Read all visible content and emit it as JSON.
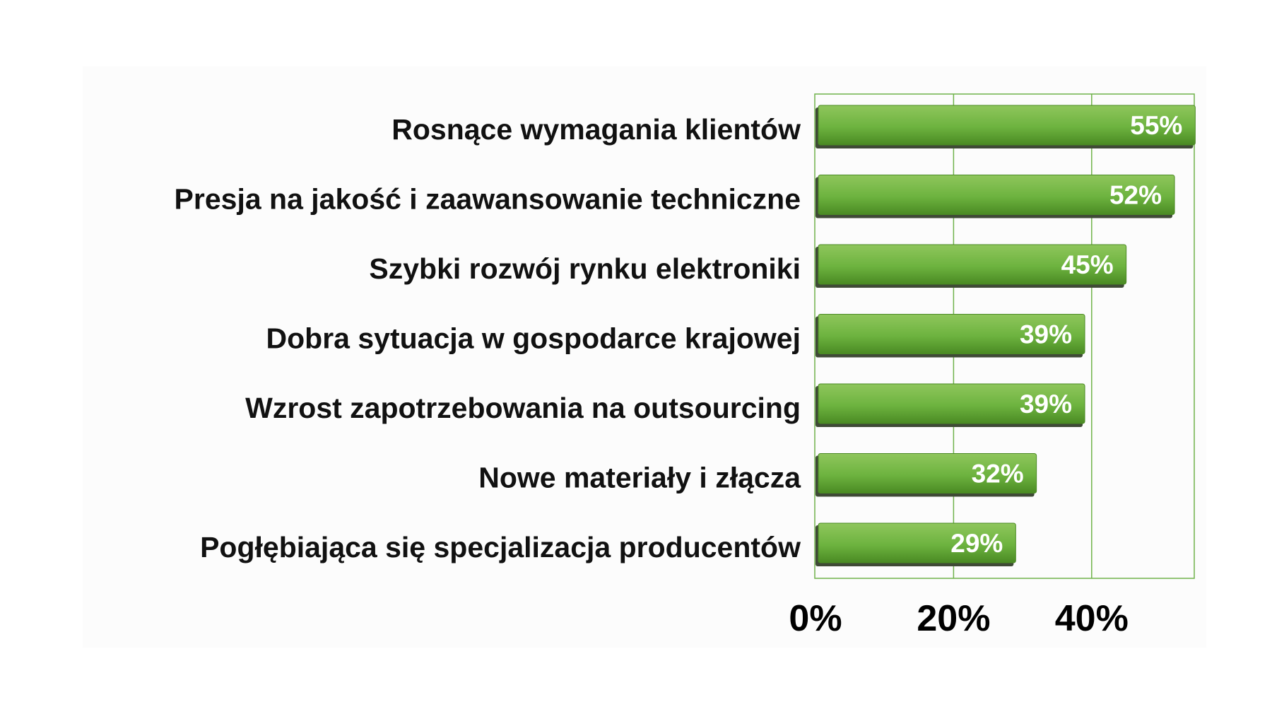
{
  "chart_data": {
    "type": "bar",
    "orientation": "horizontal",
    "categories": [
      "Rosnące wymagania klientów",
      "Presja na jakość i zaawansowanie techniczne",
      "Szybki rozwój rynku elektroniki",
      "Dobra sytuacja w gospodarce krajowej",
      "Wzrost zapotrzebowania na outsourcing",
      "Nowe materiały i złącza",
      "Pogłębiająca się specjalizacja producentów"
    ],
    "values": [
      55,
      52,
      45,
      39,
      39,
      32,
      29
    ],
    "value_labels": [
      "55%",
      "52%",
      "45%",
      "39%",
      "39%",
      "32%",
      "29%"
    ],
    "xlim": [
      0,
      55
    ],
    "x_ticks": [
      0,
      20,
      40
    ],
    "x_tick_labels": [
      "0%",
      "20%",
      "40%"
    ],
    "grid": true,
    "title": "",
    "xlabel": "",
    "ylabel": "",
    "colors": {
      "bar": "#6db33f",
      "bar_light": "#8fc65c",
      "bar_dark": "#4a8a23",
      "bar_shadow": "#3f4a36",
      "gridline": "#6fb24a",
      "label_text": "#111111",
      "value_text": "#ffffff"
    }
  }
}
